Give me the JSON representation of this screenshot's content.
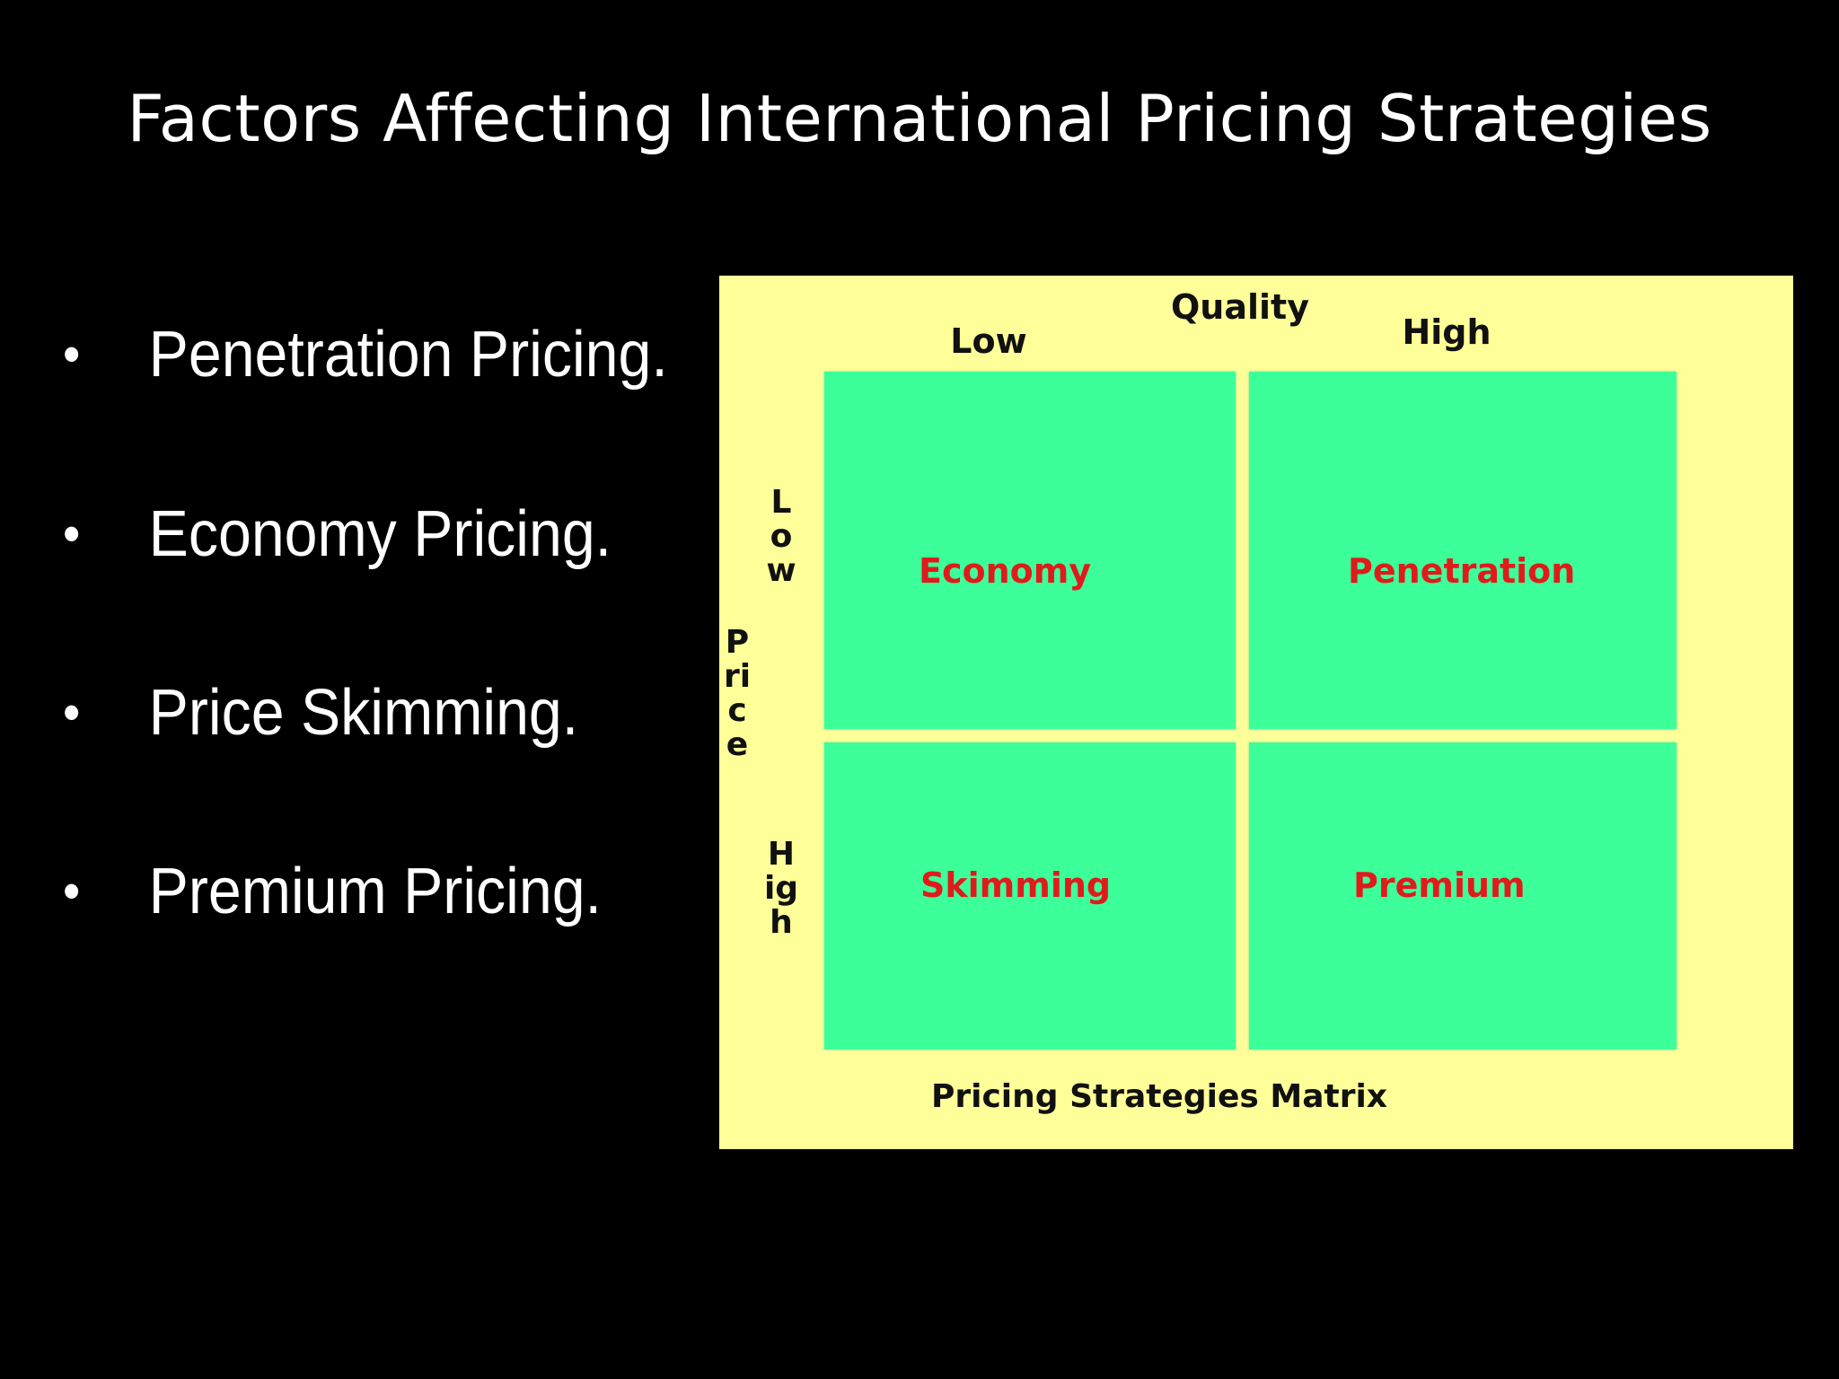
{
  "slide": {
    "title": "Factors Affecting International Pricing Strategies"
  },
  "bullets": [
    {
      "marker": "•",
      "text": "Penetration Pricing."
    },
    {
      "marker": "•",
      "text": "Economy Pricing."
    },
    {
      "marker": "•",
      "text": "Price Skimming."
    },
    {
      "marker": "•",
      "text": "Premium Pricing."
    }
  ],
  "matrix": {
    "caption": "Pricing Strategies Matrix",
    "x_axis": {
      "title": "Quality",
      "low_label": "Low",
      "high_label": "High"
    },
    "y_axis": {
      "title": "Price",
      "low_label": "Low",
      "high_label": "High"
    },
    "quadrants": {
      "low_price_low_quality": "Economy",
      "low_price_high_quality": "Penetration",
      "high_price_low_quality": "Skimming",
      "high_price_high_quality": "Premium"
    },
    "colors": {
      "background": "#ffff99",
      "quadrant_fill": "#3dff9a",
      "quadrant_label": "#e01b1b",
      "axis_text": "#111111"
    }
  }
}
